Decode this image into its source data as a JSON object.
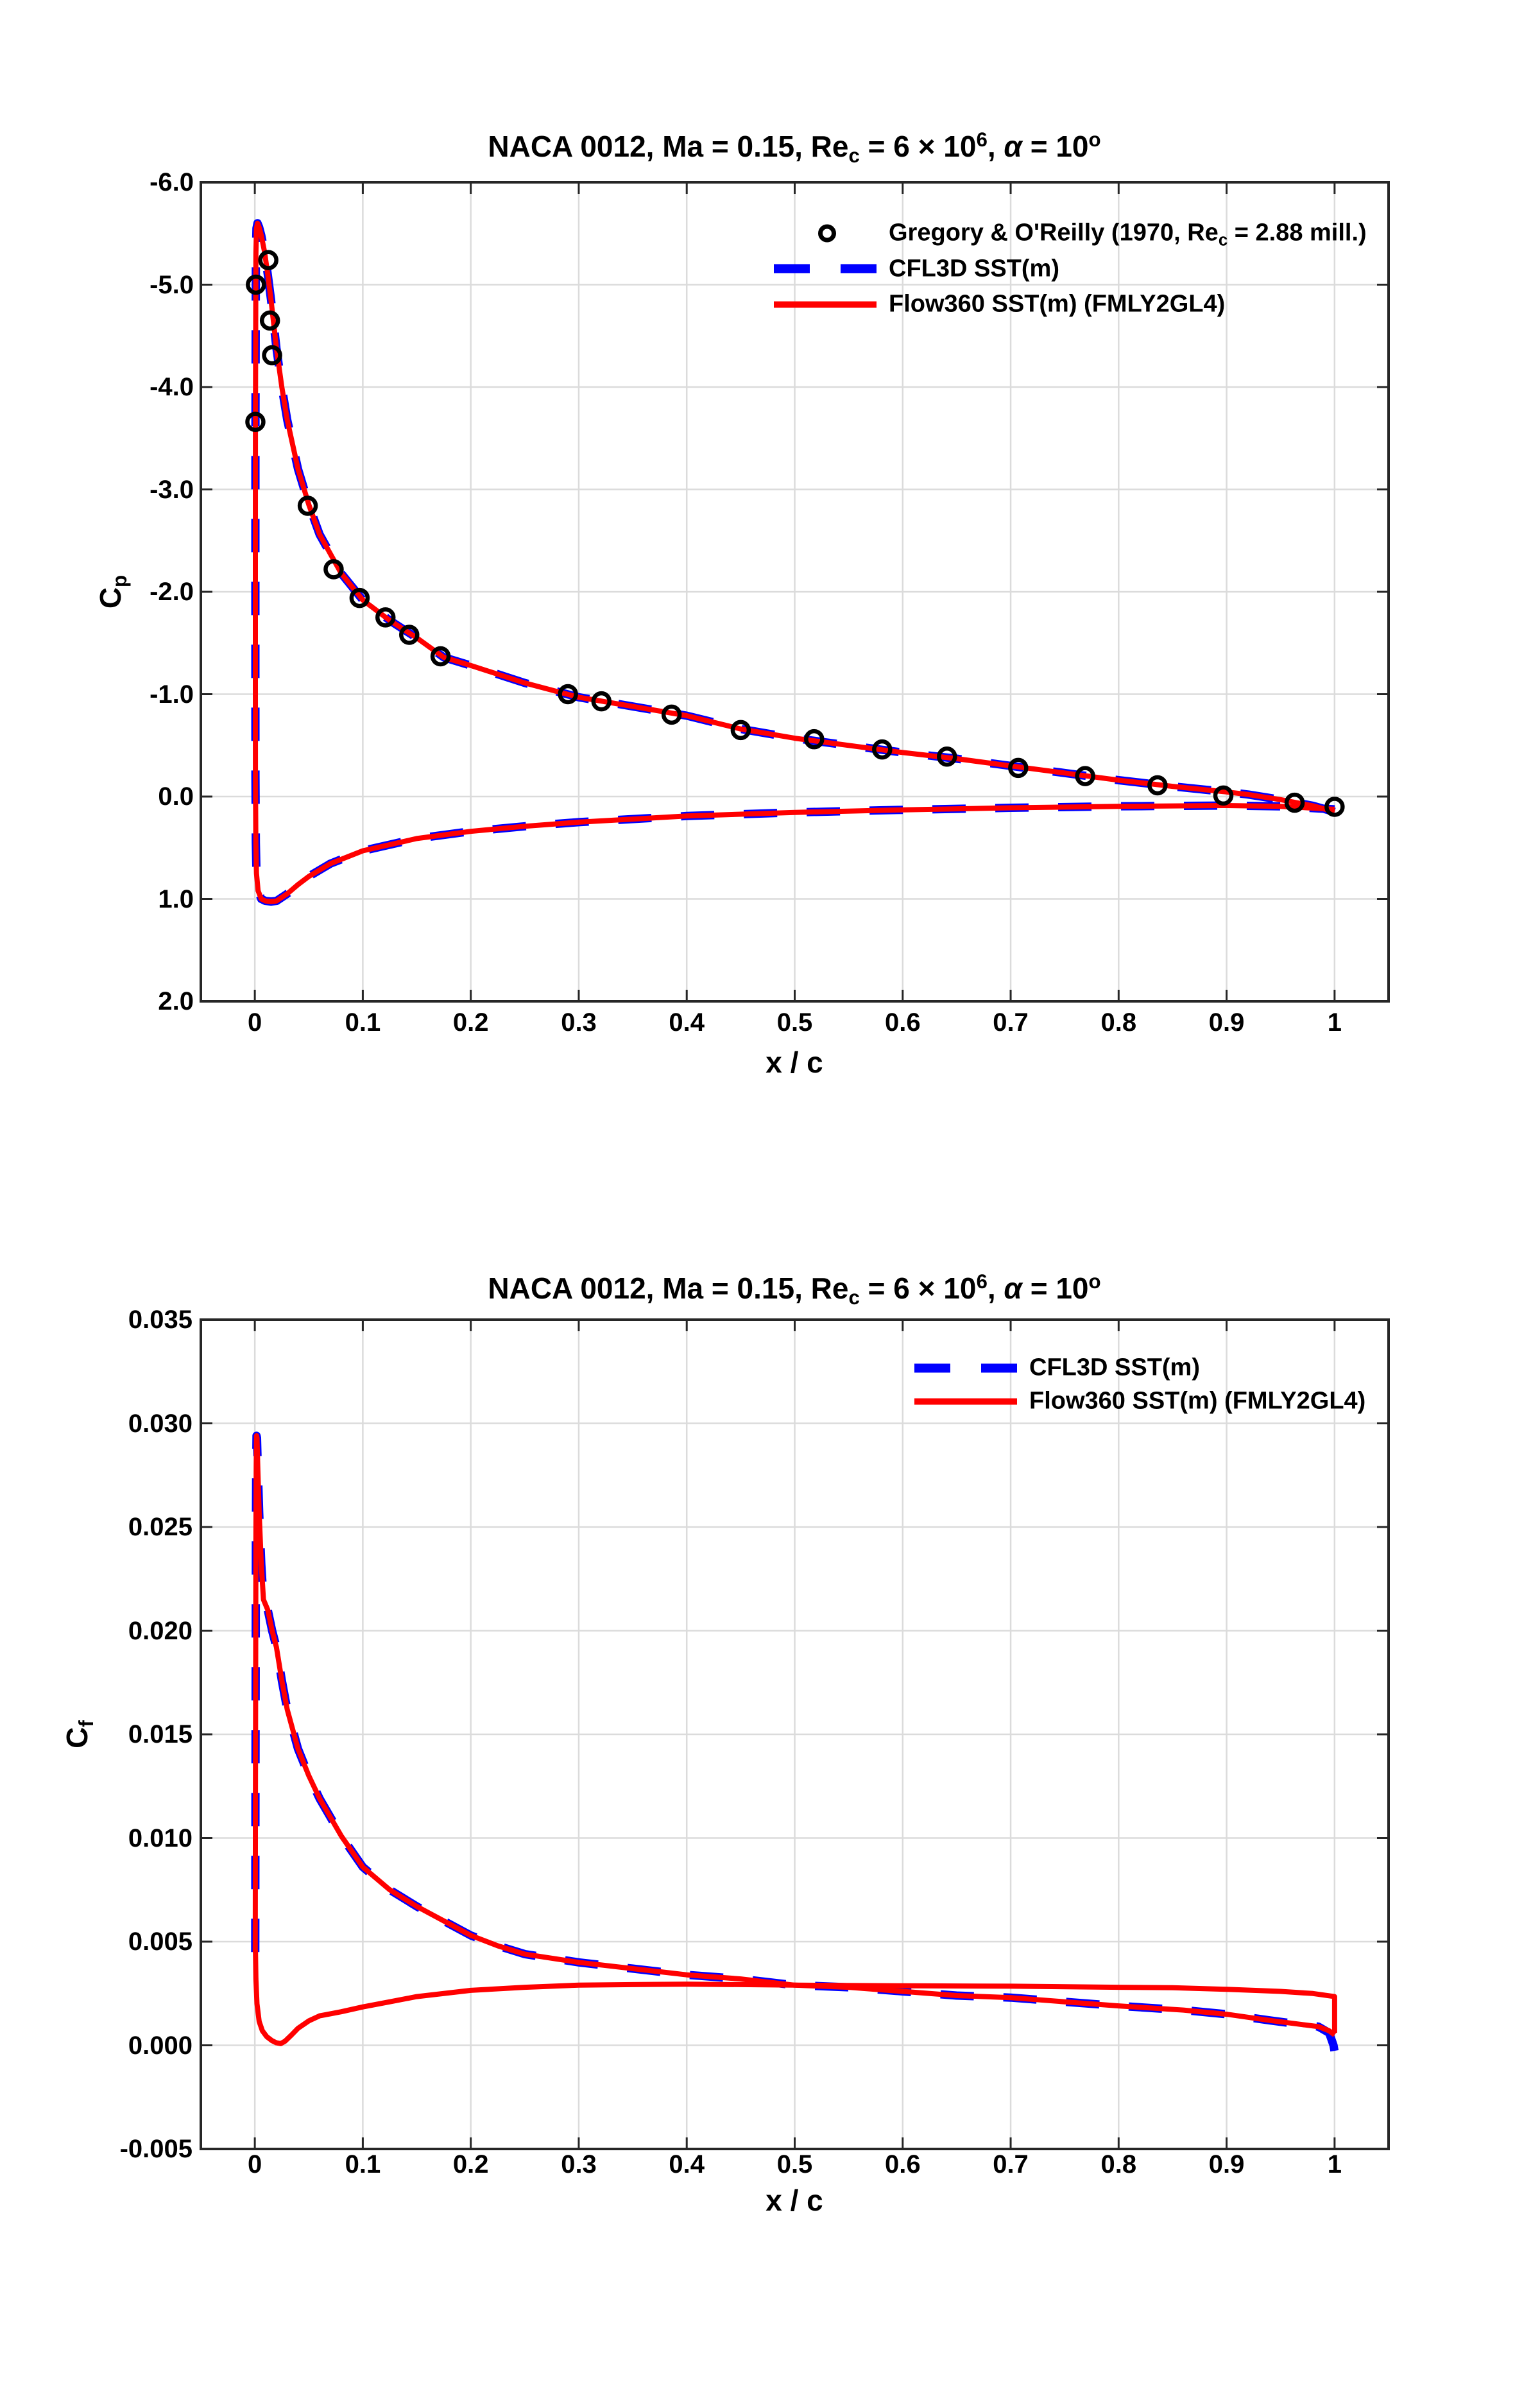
{
  "page": {
    "background": "#FFFFFF"
  },
  "colors": {
    "cfl3d_blue": "#0000FF",
    "flow360_red": "#FF0000",
    "experiment_black": "#000000",
    "grid": "#DBDBDB",
    "axis": "#262626",
    "text": "#000000"
  },
  "shared_points": {
    "cp_loop": [
      [
        1.0,
        0.15
      ],
      [
        0.98,
        0.09
      ],
      [
        0.95,
        0.03
      ],
      [
        0.92,
        -0.02
      ],
      [
        0.9,
        -0.045
      ],
      [
        0.85,
        -0.1
      ],
      [
        0.8,
        -0.16
      ],
      [
        0.75,
        -0.23
      ],
      [
        0.7,
        -0.3
      ],
      [
        0.65,
        -0.37
      ],
      [
        0.6,
        -0.43
      ],
      [
        0.55,
        -0.5
      ],
      [
        0.5,
        -0.57
      ],
      [
        0.45,
        -0.66
      ],
      [
        0.4,
        -0.79
      ],
      [
        0.35,
        -0.88
      ],
      [
        0.3,
        -0.97
      ],
      [
        0.25,
        -1.11
      ],
      [
        0.2,
        -1.28
      ],
      [
        0.175,
        -1.36
      ],
      [
        0.15,
        -1.55
      ],
      [
        0.125,
        -1.72
      ],
      [
        0.1,
        -1.92
      ],
      [
        0.08,
        -2.18
      ],
      [
        0.06,
        -2.56
      ],
      [
        0.05,
        -2.85
      ],
      [
        0.04,
        -3.2
      ],
      [
        0.03,
        -3.68
      ],
      [
        0.025,
        -4.0
      ],
      [
        0.02,
        -4.38
      ],
      [
        0.015,
        -4.85
      ],
      [
        0.012,
        -5.1
      ],
      [
        0.009,
        -5.32
      ],
      [
        0.006,
        -5.48
      ],
      [
        0.004,
        -5.56
      ],
      [
        0.0025,
        -5.6
      ],
      [
        0.0015,
        -5.55
      ],
      [
        0.001,
        -5.3
      ],
      [
        0.0008,
        -4.6
      ],
      [
        0.0006,
        -3.6
      ],
      [
        0.0005,
        -2.4
      ],
      [
        0.0005,
        -1.2
      ],
      [
        0.0006,
        -0.2
      ],
      [
        0.0009,
        0.45
      ],
      [
        0.0015,
        0.75
      ],
      [
        0.003,
        0.92
      ],
      [
        0.006,
        1.0
      ],
      [
        0.01,
        1.02
      ],
      [
        0.015,
        1.025
      ],
      [
        0.02,
        1.02
      ],
      [
        0.03,
        0.95
      ],
      [
        0.04,
        0.86
      ],
      [
        0.05,
        0.78
      ],
      [
        0.07,
        0.655
      ],
      [
        0.1,
        0.53
      ],
      [
        0.15,
        0.41
      ],
      [
        0.2,
        0.34
      ],
      [
        0.25,
        0.29
      ],
      [
        0.3,
        0.25
      ],
      [
        0.4,
        0.19
      ],
      [
        0.5,
        0.155
      ],
      [
        0.6,
        0.13
      ],
      [
        0.7,
        0.11
      ],
      [
        0.8,
        0.095
      ],
      [
        0.9,
        0.088
      ],
      [
        0.95,
        0.095
      ],
      [
        1.0,
        0.125
      ]
    ],
    "cp_experiment": [
      [
        0.0005,
        -3.66
      ],
      [
        0.001,
        -5.0
      ],
      [
        0.0125,
        -5.24
      ],
      [
        0.014,
        -4.65
      ],
      [
        0.016,
        -4.31
      ],
      [
        0.049,
        -2.84
      ],
      [
        0.073,
        -2.22
      ],
      [
        0.097,
        -1.94
      ],
      [
        0.121,
        -1.75
      ],
      [
        0.143,
        -1.58
      ],
      [
        0.172,
        -1.37
      ],
      [
        0.29,
        -1.0
      ],
      [
        0.321,
        -0.93
      ],
      [
        0.386,
        -0.8
      ],
      [
        0.45,
        -0.65
      ],
      [
        0.518,
        -0.56
      ],
      [
        0.581,
        -0.46
      ],
      [
        0.641,
        -0.39
      ],
      [
        0.707,
        -0.28
      ],
      [
        0.769,
        -0.2
      ],
      [
        0.836,
        -0.11
      ],
      [
        0.897,
        -0.01
      ],
      [
        0.963,
        0.06
      ],
      [
        1.0,
        0.1
      ]
    ],
    "cf_upper": [
      [
        0.0004,
        0.0045
      ],
      [
        0.0006,
        0.012
      ],
      [
        0.0008,
        0.019
      ],
      [
        0.001,
        0.0245
      ],
      [
        0.0013,
        0.028
      ],
      [
        0.0016,
        0.0294
      ],
      [
        0.002,
        0.0293
      ],
      [
        0.0028,
        0.0278
      ],
      [
        0.004,
        0.0257
      ],
      [
        0.006,
        0.0232
      ],
      [
        0.008,
        0.0215
      ],
      [
        0.012,
        0.021
      ],
      [
        0.016,
        0.02
      ],
      [
        0.02,
        0.0192
      ],
      [
        0.025,
        0.0176
      ],
      [
        0.03,
        0.0162
      ],
      [
        0.04,
        0.0143
      ],
      [
        0.05,
        0.013
      ],
      [
        0.06,
        0.0119
      ],
      [
        0.08,
        0.0101
      ],
      [
        0.1,
        0.0086
      ],
      [
        0.125,
        0.0075
      ],
      [
        0.15,
        0.0067
      ],
      [
        0.175,
        0.006
      ],
      [
        0.2,
        0.0053
      ],
      [
        0.225,
        0.0048
      ],
      [
        0.25,
        0.0044
      ],
      [
        0.3,
        0.004
      ],
      [
        0.35,
        0.0037
      ],
      [
        0.4,
        0.0034
      ],
      [
        0.45,
        0.0032
      ],
      [
        0.5,
        0.0029
      ],
      [
        0.55,
        0.0028
      ],
      [
        0.6,
        0.0026
      ],
      [
        0.65,
        0.0024
      ],
      [
        0.7,
        0.0023
      ],
      [
        0.75,
        0.0021
      ],
      [
        0.8,
        0.0019
      ],
      [
        0.86,
        0.0017
      ],
      [
        0.9,
        0.0015
      ],
      [
        0.94,
        0.0012
      ],
      [
        0.97,
        0.001
      ],
      [
        0.985,
        0.0009
      ]
    ],
    "cf_cfl3d_tail": [
      [
        0.995,
        0.0006
      ],
      [
        0.999,
        0.0
      ],
      [
        1.0,
        -0.0003
      ]
    ],
    "cf_flow360_tail": [
      [
        0.995,
        0.0007
      ],
      [
        1.0,
        0.0005
      ]
    ],
    "cf_lower": [
      [
        0.0006,
        0.0046
      ],
      [
        0.001,
        0.0032
      ],
      [
        0.002,
        0.002
      ],
      [
        0.004,
        0.00115
      ],
      [
        0.007,
        0.0007
      ],
      [
        0.011,
        0.00042
      ],
      [
        0.016,
        0.00022
      ],
      [
        0.02,
        0.00012
      ],
      [
        0.024,
        8e-05
      ],
      [
        0.028,
        0.0002
      ],
      [
        0.034,
        0.0005
      ],
      [
        0.04,
        0.00082
      ],
      [
        0.05,
        0.00118
      ],
      [
        0.06,
        0.00142
      ],
      [
        0.07,
        0.00152
      ],
      [
        0.08,
        0.00162
      ],
      [
        0.1,
        0.00185
      ],
      [
        0.125,
        0.0021
      ],
      [
        0.15,
        0.00235
      ],
      [
        0.2,
        0.00265
      ],
      [
        0.25,
        0.0028
      ],
      [
        0.3,
        0.0029
      ],
      [
        0.35,
        0.00293
      ],
      [
        0.4,
        0.00295
      ],
      [
        0.45,
        0.00293
      ],
      [
        0.5,
        0.0029
      ],
      [
        0.6,
        0.00287
      ],
      [
        0.7,
        0.00285
      ],
      [
        0.8,
        0.0028
      ],
      [
        0.85,
        0.00278
      ],
      [
        0.9,
        0.0027
      ],
      [
        0.95,
        0.0026
      ],
      [
        0.98,
        0.0025
      ],
      [
        1.0,
        0.00235
      ],
      [
        1.0,
        0.0006
      ]
    ]
  },
  "chart_data": [
    {
      "id": "cp",
      "type": "line+scatter",
      "title_segments": [
        {
          "t": "NACA 0012, Ma = 0.15, Re"
        },
        {
          "t": "c",
          "v": "sub"
        },
        {
          "t": " = 6 × 10"
        },
        {
          "t": "6",
          "v": "sup"
        },
        {
          "t": ", "
        },
        {
          "t": "α",
          "v": "i"
        },
        {
          "t": " = 10"
        },
        {
          "t": "o",
          "v": "sup"
        }
      ],
      "xlabel": "x / c",
      "ylabel_segments": [
        {
          "t": "C"
        },
        {
          "t": "p",
          "v": "sub"
        }
      ],
      "xlim": [
        -0.05,
        1.05
      ],
      "ylim": [
        -6,
        2
      ],
      "y_axis_reversed": true,
      "grid": true,
      "x_ticks": {
        "values": [
          0,
          0.1,
          0.2,
          0.3,
          0.4,
          0.5,
          0.6,
          0.7,
          0.8,
          0.9,
          1
        ],
        "labels": [
          "0",
          "0.1",
          "0.2",
          "0.3",
          "0.4",
          "0.5",
          "0.6",
          "0.7",
          "0.8",
          "0.9",
          "1"
        ]
      },
      "y_ticks": {
        "values": [
          -6,
          -5,
          -4,
          -3,
          -2,
          -1,
          0,
          1,
          2
        ],
        "labels": [
          "-6.0",
          "-5.0",
          "-4.0",
          "-3.0",
          "-2.0",
          "-1.0",
          "0.0",
          "1.0",
          "2.0"
        ]
      },
      "legend": {
        "position": "inside-upper-right, no box",
        "items": [
          {
            "swatch": "circle",
            "color": "#000000",
            "label_segments": [
              {
                "t": "Gregory & O'Reilly (1970, Re"
              },
              {
                "t": "c",
                "v": "sub"
              },
              {
                "t": " = 2.88 mill.)"
              }
            ]
          },
          {
            "swatch": "dashed-line",
            "color": "#0000FF",
            "label_segments": [
              {
                "t": "CFL3D SST(m)"
              }
            ]
          },
          {
            "swatch": "solid-line",
            "color": "#FF0000",
            "label_segments": [
              {
                "t": "Flow360 SST(m) (FMLY2GL4)"
              }
            ]
          }
        ]
      },
      "series": [
        {
          "name": "CFL3D SST(m)",
          "style": "dashed",
          "color": "#0000FF",
          "width": 13,
          "paths": [
            [
              "cp_loop"
            ]
          ]
        },
        {
          "name": "Flow360 SST(m) (FMLY2GL4)",
          "style": "solid",
          "color": "#FF0000",
          "width": 8,
          "paths": [
            [
              "cp_loop"
            ]
          ]
        },
        {
          "name": "Gregory & O'Reilly (1970, Re_c = 2.88 mill.)",
          "style": "scatter",
          "color": "#000000",
          "paths": [
            [
              "cp_experiment"
            ]
          ]
        }
      ]
    },
    {
      "id": "cf",
      "type": "line",
      "title_segments": [
        {
          "t": "NACA 0012, Ma = 0.15, Re"
        },
        {
          "t": "c",
          "v": "sub"
        },
        {
          "t": " = 6 × 10"
        },
        {
          "t": "6",
          "v": "sup"
        },
        {
          "t": ", "
        },
        {
          "t": "α",
          "v": "i"
        },
        {
          "t": " = 10"
        },
        {
          "t": "o",
          "v": "sup"
        }
      ],
      "xlabel": "x / c",
      "ylabel_segments": [
        {
          "t": "C"
        },
        {
          "t": "f",
          "v": "sub"
        }
      ],
      "xlim": [
        -0.05,
        1.05
      ],
      "ylim": [
        -0.005,
        0.035
      ],
      "y_axis_reversed": false,
      "grid": true,
      "x_ticks": {
        "values": [
          0,
          0.1,
          0.2,
          0.3,
          0.4,
          0.5,
          0.6,
          0.7,
          0.8,
          0.9,
          1
        ],
        "labels": [
          "0",
          "0.1",
          "0.2",
          "0.3",
          "0.4",
          "0.5",
          "0.6",
          "0.7",
          "0.8",
          "0.9",
          "1"
        ]
      },
      "y_ticks": {
        "values": [
          0.035,
          0.03,
          0.025,
          0.02,
          0.015,
          0.01,
          0.005,
          0.0,
          -0.005
        ],
        "labels": [
          "0.035",
          "0.030",
          "0.025",
          "0.020",
          "0.015",
          "0.010",
          "0.005",
          "0.000",
          "-0.005"
        ]
      },
      "legend": {
        "position": "inside-upper-right, no box",
        "items": [
          {
            "swatch": "dashed-line",
            "color": "#0000FF",
            "label_segments": [
              {
                "t": "CFL3D SST(m)"
              }
            ]
          },
          {
            "swatch": "solid-line",
            "color": "#FF0000",
            "label_segments": [
              {
                "t": "Flow360 SST(m) (FMLY2GL4)"
              }
            ]
          }
        ]
      },
      "series": [
        {
          "name": "CFL3D SST(m)",
          "style": "dashed",
          "color": "#0000FF",
          "width": 13,
          "paths": [
            [
              "cf_upper",
              "cf_cfl3d_tail"
            ]
          ]
        },
        {
          "name": "Flow360 SST(m) (FMLY2GL4)",
          "style": "solid",
          "color": "#FF0000",
          "width": 8,
          "paths": [
            [
              "cf_upper",
              "cf_flow360_tail"
            ],
            [
              "cf_lower"
            ]
          ]
        }
      ]
    }
  ]
}
